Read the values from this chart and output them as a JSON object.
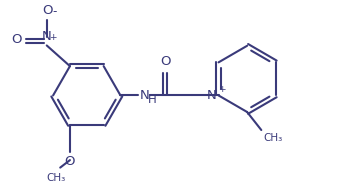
{
  "background_color": "#ffffff",
  "line_color": "#3a3a7a",
  "text_color": "#3a3a7a",
  "line_width": 1.5,
  "font_size": 8.5,
  "figsize": [
    3.57,
    1.92
  ],
  "dpi": 100,
  "xlim": [
    0,
    9.5
  ],
  "ylim": [
    0,
    5.0
  ]
}
